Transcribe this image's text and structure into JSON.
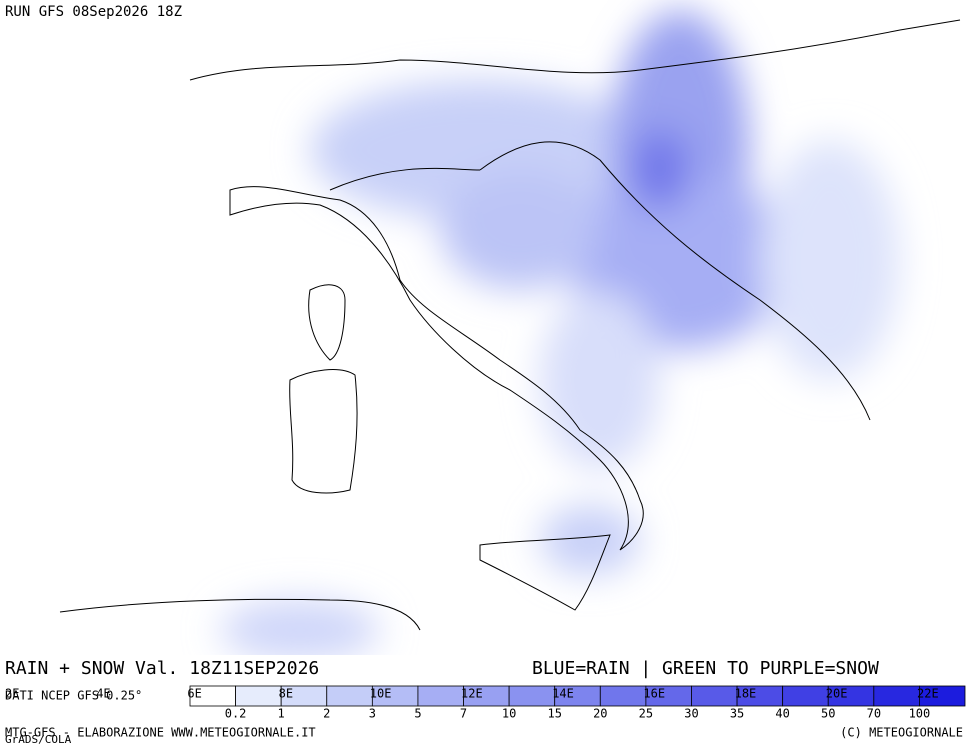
{
  "header": {
    "run": "RUN GFS 08Sep2026 18Z"
  },
  "footer": {
    "title": "RAIN + SNOW Val. 18Z11SEP2026",
    "legend_note": "BLUE=RAIN | GREEN TO PURPLE=SNOW",
    "source": "DATI NCEP GFS 0.25°",
    "credit": "MTG-GFS - ELABORAZIONE WWW.METEOGIORNALE.IT",
    "copyright": "(C) METEOGIORNALE",
    "software": "GrADS/COLA"
  },
  "map": {
    "lon_labels": [
      "2E",
      "4E",
      "6E",
      "8E",
      "10E",
      "12E",
      "14E",
      "16E",
      "18E",
      "20E",
      "22E"
    ]
  },
  "colorbar": {
    "labels": [
      0.2,
      1,
      2,
      3,
      5,
      7,
      10,
      15,
      20,
      25,
      30,
      35,
      40,
      50,
      70,
      100
    ],
    "colors": [
      "#ffffff",
      "#e6ecfc",
      "#d4dcfa",
      "#c4cdf8",
      "#b4bdf6",
      "#a6aef4",
      "#98a0f2",
      "#8a92f0",
      "#7d84ee",
      "#7076ec",
      "#6468ea",
      "#585ae8",
      "#4c4ce6",
      "#4040e4",
      "#3434e2",
      "#2828e0",
      "#1c1cde"
    ]
  }
}
